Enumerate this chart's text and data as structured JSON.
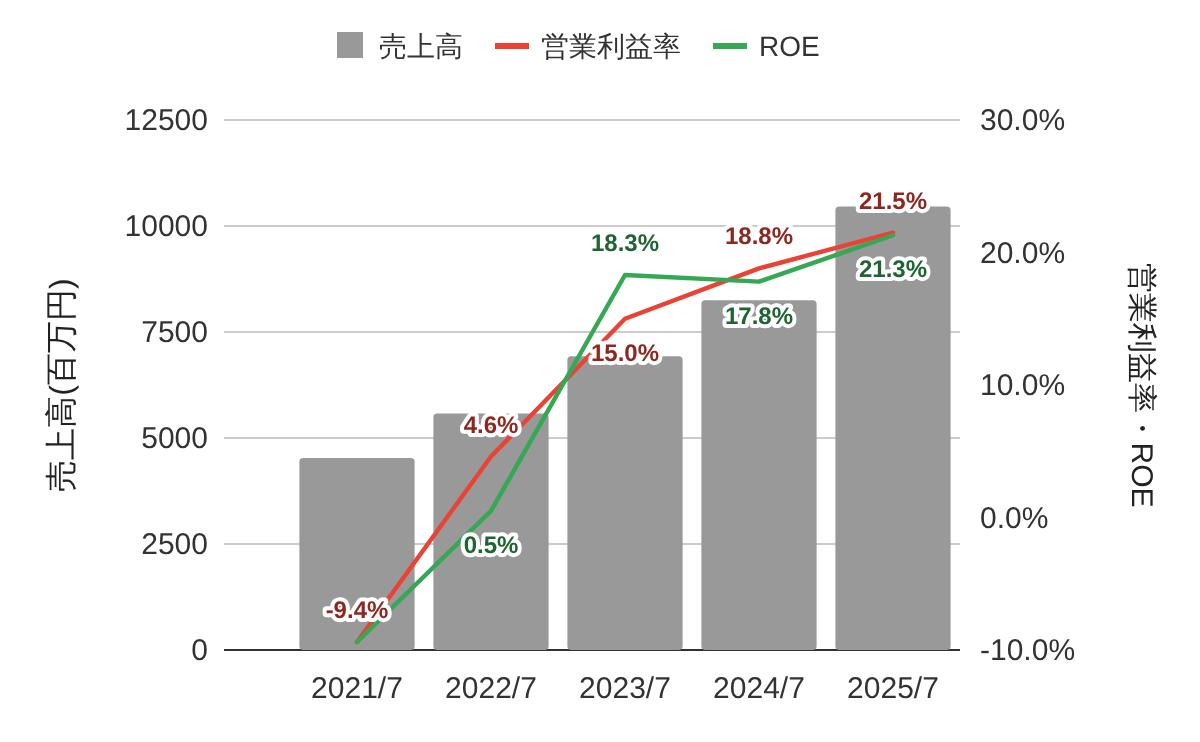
{
  "chart_data": {
    "type": "bar",
    "categories": [
      "2021/7",
      "2022/7",
      "2023/7",
      "2024/7",
      "2025/7"
    ],
    "series": [
      {
        "name": "売上高",
        "color": "#999999",
        "values": [
          4530,
          5580,
          6930,
          8250,
          10460
        ]
      },
      {
        "name": "営業利益率",
        "type": "line",
        "axis": "y2",
        "color": "#ea4335",
        "values": [
          -9.4,
          4.6,
          15.0,
          18.8,
          21.5
        ],
        "value_labels": [
          "-9.4%",
          "4.6%",
          "15.0%",
          "18.8%",
          "21.5%"
        ]
      },
      {
        "name": "ROE",
        "type": "line",
        "axis": "y2",
        "color": "#34a853",
        "values": [
          -9.4,
          0.5,
          18.3,
          17.8,
          21.3
        ],
        "value_labels": [
          null,
          "0.5%",
          "18.3%",
          "17.8%",
          "21.3%"
        ]
      }
    ],
    "ylabel": "売上高(百万円)",
    "y2label": "営業利益率・ROE",
    "ylim": [
      0,
      12500
    ],
    "yticks": [
      0,
      2500,
      5000,
      7500,
      10000,
      12500
    ],
    "y2lim": [
      -10,
      30
    ],
    "y2ticks": [
      {
        "value": -10,
        "label": "-10.0%"
      },
      {
        "value": 0,
        "label": "0.0%"
      },
      {
        "value": 10,
        "label": "10.0%"
      },
      {
        "value": 20,
        "label": "20.0%"
      },
      {
        "value": 30,
        "label": "30.0%"
      }
    ],
    "grid": "y",
    "legend": "top",
    "marker": "none",
    "line_style": "solid"
  }
}
